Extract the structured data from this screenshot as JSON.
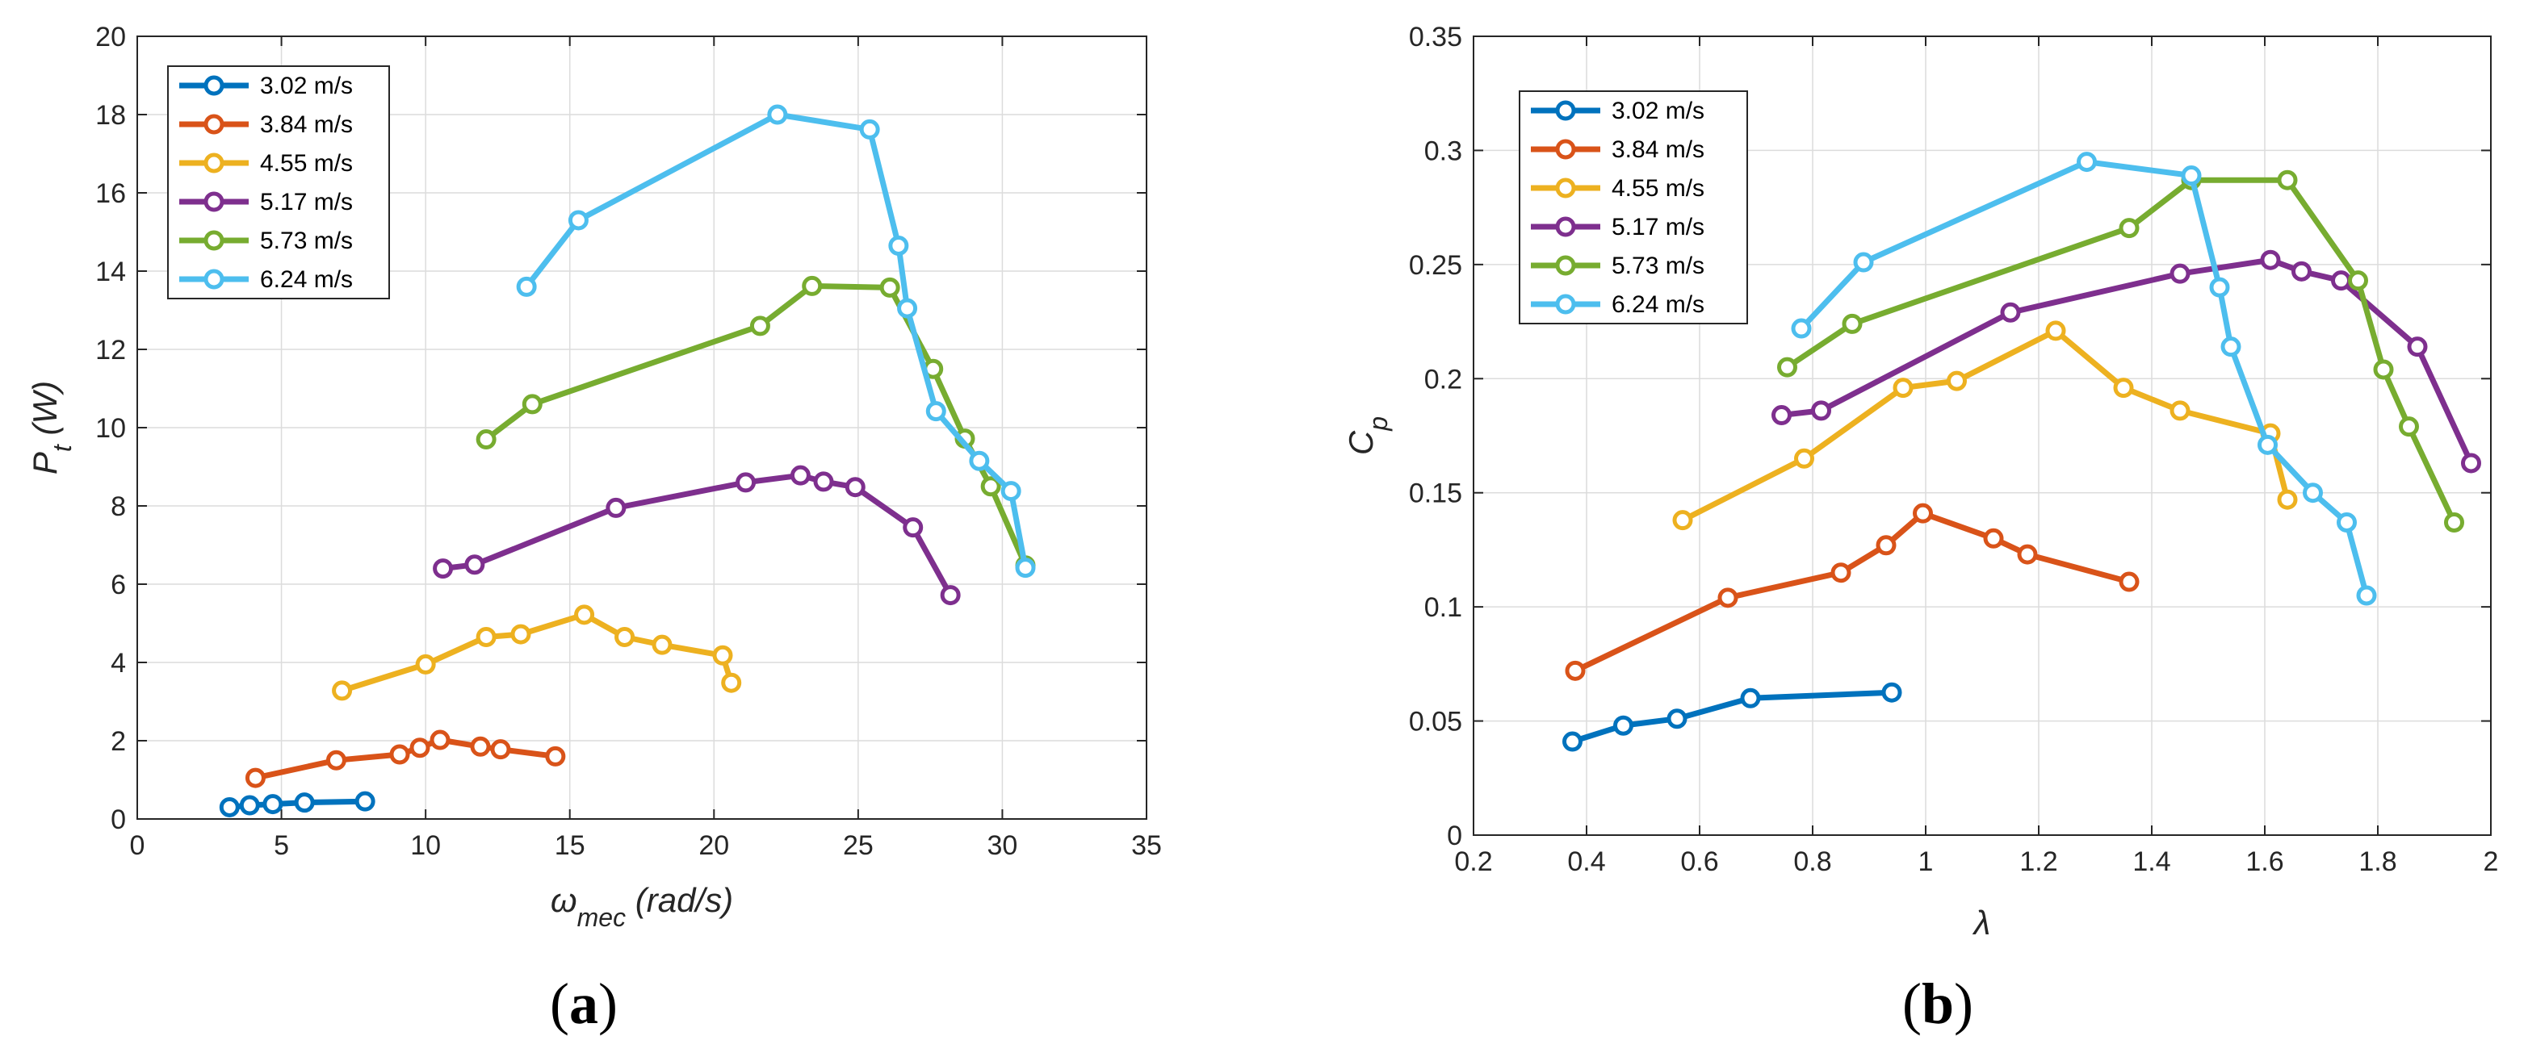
{
  "panels": [
    {
      "letter": "a",
      "open": "(",
      "close": ")"
    },
    {
      "letter": "b",
      "open": "(",
      "close": ")"
    }
  ],
  "chart_data": [
    {
      "type": "line",
      "title": "",
      "xlabel": "ω_mec (rad/s)",
      "xlabel_main": "ω",
      "xlabel_sub": "mec",
      "xlabel_rest": " (rad/s)",
      "ylabel": "P_t (W)",
      "ylabel_main": "P",
      "ylabel_sub": "t",
      "ylabel_rest": " (W)",
      "xlim": [
        0,
        35
      ],
      "ylim": [
        0,
        20
      ],
      "xticks": [
        0,
        5,
        10,
        15,
        20,
        25,
        30,
        35
      ],
      "yticks": [
        0,
        2,
        4,
        6,
        8,
        10,
        12,
        14,
        16,
        18,
        20
      ],
      "xtick_labels": [
        "0",
        "5",
        "10",
        "15",
        "20",
        "25",
        "30",
        "35"
      ],
      "ytick_labels": [
        "0",
        "2",
        "4",
        "6",
        "8",
        "10",
        "12",
        "14",
        "16",
        "18",
        "20"
      ],
      "grid": true,
      "legend_position": "top-left",
      "series": [
        {
          "name": "3.02 m/s",
          "color": "#0072BD",
          "x": [
            3.2,
            3.9,
            4.7,
            5.8,
            7.9
          ],
          "y": [
            0.3,
            0.35,
            0.38,
            0.42,
            0.45
          ]
        },
        {
          "name": "3.84 m/s",
          "color": "#D95319",
          "x": [
            4.1,
            6.9,
            9.1,
            9.8,
            10.5,
            11.9,
            12.6,
            14.5
          ],
          "y": [
            1.05,
            1.5,
            1.65,
            1.82,
            2.02,
            1.85,
            1.78,
            1.6
          ]
        },
        {
          "name": "4.55 m/s",
          "color": "#EDB120",
          "x": [
            7.1,
            10.0,
            12.1,
            13.3,
            15.5,
            16.9,
            18.2,
            20.3,
            20.6
          ],
          "y": [
            3.28,
            3.95,
            4.65,
            4.72,
            5.22,
            4.65,
            4.45,
            4.18,
            3.48
          ]
        },
        {
          "name": "5.17 m/s",
          "color": "#7E2F8E",
          "x": [
            10.6,
            11.7,
            16.6,
            21.1,
            23.0,
            23.8,
            24.9,
            26.9,
            28.2
          ],
          "y": [
            6.4,
            6.5,
            7.95,
            8.6,
            8.78,
            8.62,
            8.48,
            7.45,
            5.72
          ]
        },
        {
          "name": "5.73 m/s",
          "color": "#77AC30",
          "x": [
            12.1,
            13.7,
            21.6,
            23.4,
            26.1,
            27.6,
            28.7,
            29.6,
            30.8
          ],
          "y": [
            9.7,
            10.6,
            12.6,
            13.62,
            13.58,
            11.5,
            9.72,
            8.5,
            6.48
          ]
        },
        {
          "name": "6.24 m/s",
          "color": "#4DBEEE",
          "x": [
            13.5,
            15.3,
            22.2,
            25.4,
            26.4,
            26.7,
            27.7,
            29.2,
            30.3,
            30.8
          ],
          "y": [
            13.6,
            15.3,
            18.0,
            17.62,
            14.65,
            13.05,
            10.42,
            9.15,
            8.38,
            6.42
          ]
        }
      ]
    },
    {
      "type": "line",
      "title": "",
      "xlabel": "λ",
      "ylabel": "C_p",
      "ylabel_main": "C",
      "ylabel_sub": "p",
      "xlim": [
        0.2,
        2.0
      ],
      "ylim": [
        0,
        0.35
      ],
      "xticks": [
        0.2,
        0.4,
        0.6,
        0.8,
        1.0,
        1.2,
        1.4,
        1.6,
        1.8,
        2.0
      ],
      "yticks": [
        0,
        0.05,
        0.1,
        0.15,
        0.2,
        0.25,
        0.3,
        0.35
      ],
      "xtick_labels": [
        "0.2",
        "0.4",
        "0.6",
        "0.8",
        "1",
        "1.2",
        "1.4",
        "1.6",
        "1.8",
        "2"
      ],
      "ytick_labels": [
        "0",
        "0.05",
        "0.1",
        "0.15",
        "0.2",
        "0.25",
        "0.3",
        "0.35"
      ],
      "grid": true,
      "legend_position": "top-left",
      "series": [
        {
          "name": "3.02 m/s",
          "color": "#0072BD",
          "x": [
            0.375,
            0.465,
            0.56,
            0.69,
            0.94
          ],
          "y": [
            0.041,
            0.048,
            0.051,
            0.06,
            0.0625
          ]
        },
        {
          "name": "3.84 m/s",
          "color": "#D95319",
          "x": [
            0.38,
            0.65,
            0.85,
            0.93,
            0.995,
            1.12,
            1.18,
            1.36
          ],
          "y": [
            0.072,
            0.104,
            0.115,
            0.127,
            0.141,
            0.13,
            0.123,
            0.111
          ]
        },
        {
          "name": "4.55 m/s",
          "color": "#EDB120",
          "x": [
            0.57,
            0.785,
            0.96,
            1.055,
            1.23,
            1.35,
            1.45,
            1.61,
            1.64
          ],
          "y": [
            0.138,
            0.165,
            0.196,
            0.199,
            0.221,
            0.196,
            0.186,
            0.176,
            0.147
          ]
        },
        {
          "name": "5.17 m/s",
          "color": "#7E2F8E",
          "x": [
            0.745,
            0.815,
            1.15,
            1.45,
            1.61,
            1.665,
            1.735,
            1.87,
            1.965
          ],
          "y": [
            0.184,
            0.186,
            0.229,
            0.246,
            0.252,
            0.247,
            0.243,
            0.214,
            0.163
          ]
        },
        {
          "name": "5.73 m/s",
          "color": "#77AC30",
          "x": [
            0.755,
            0.87,
            1.36,
            1.47,
            1.64,
            1.765,
            1.81,
            1.855,
            1.935
          ],
          "y": [
            0.205,
            0.224,
            0.266,
            0.287,
            0.287,
            0.243,
            0.204,
            0.179,
            0.137
          ]
        },
        {
          "name": "6.24 m/s",
          "color": "#4DBEEE",
          "x": [
            0.78,
            0.89,
            1.285,
            1.47,
            1.52,
            1.54,
            1.605,
            1.685,
            1.745,
            1.78
          ],
          "y": [
            0.222,
            0.251,
            0.295,
            0.289,
            0.24,
            0.214,
            0.171,
            0.15,
            0.137,
            0.105
          ]
        }
      ]
    }
  ]
}
